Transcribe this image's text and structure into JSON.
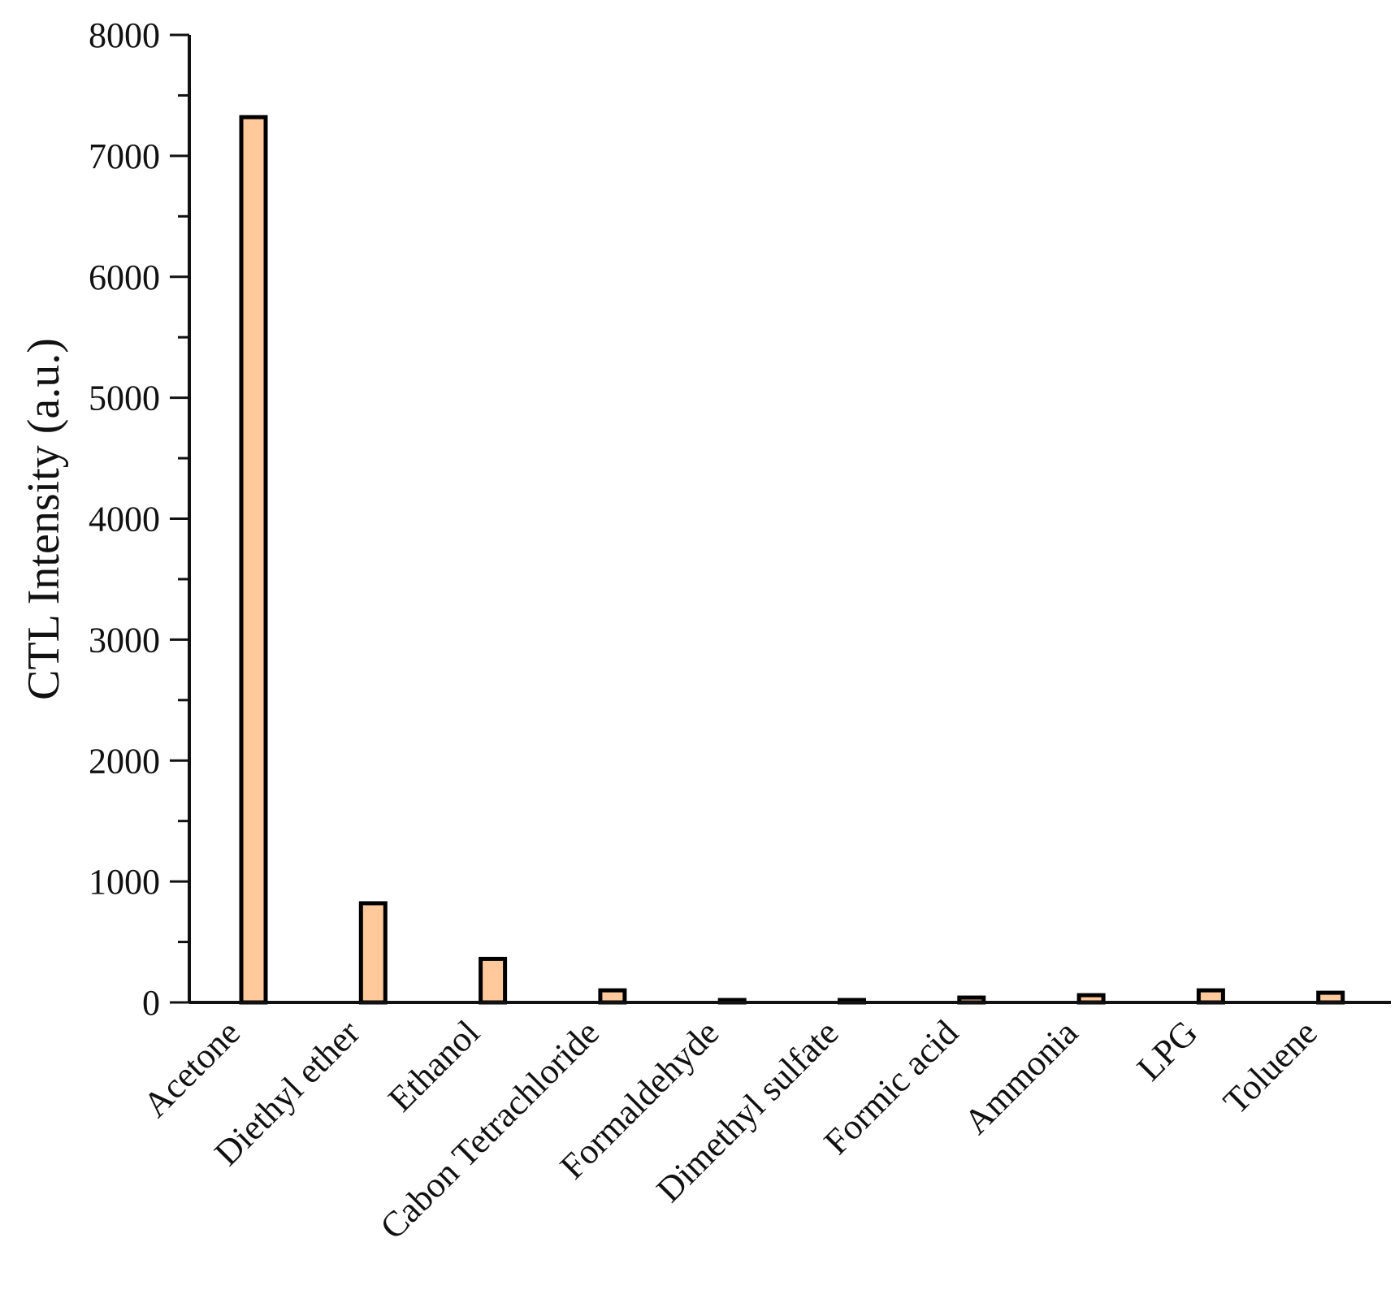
{
  "chart_data": {
    "type": "bar",
    "title": "",
    "xlabel": "",
    "ylabel": "CTL Intensity (a.u.)",
    "ylim": [
      0,
      8000
    ],
    "yticks": [
      0,
      1000,
      2000,
      3000,
      4000,
      5000,
      6000,
      7000,
      8000
    ],
    "yticks_minor_step": 500,
    "grid": false,
    "legend": "none",
    "categories": [
      "Acetone",
      "Diethyl ether",
      "Ethanol",
      "Cabon Tetrachloride",
      "Formaldehyde",
      "Dimethyl sulfate",
      "Formic acid",
      "Ammonia",
      "LPG",
      "Toluene"
    ],
    "values": [
      7320,
      820,
      360,
      100,
      5,
      20,
      40,
      60,
      100,
      80
    ],
    "colors": {
      "bar_fill": "#FFC99C",
      "bar_edge": "#000000",
      "axis": "#111111"
    }
  }
}
